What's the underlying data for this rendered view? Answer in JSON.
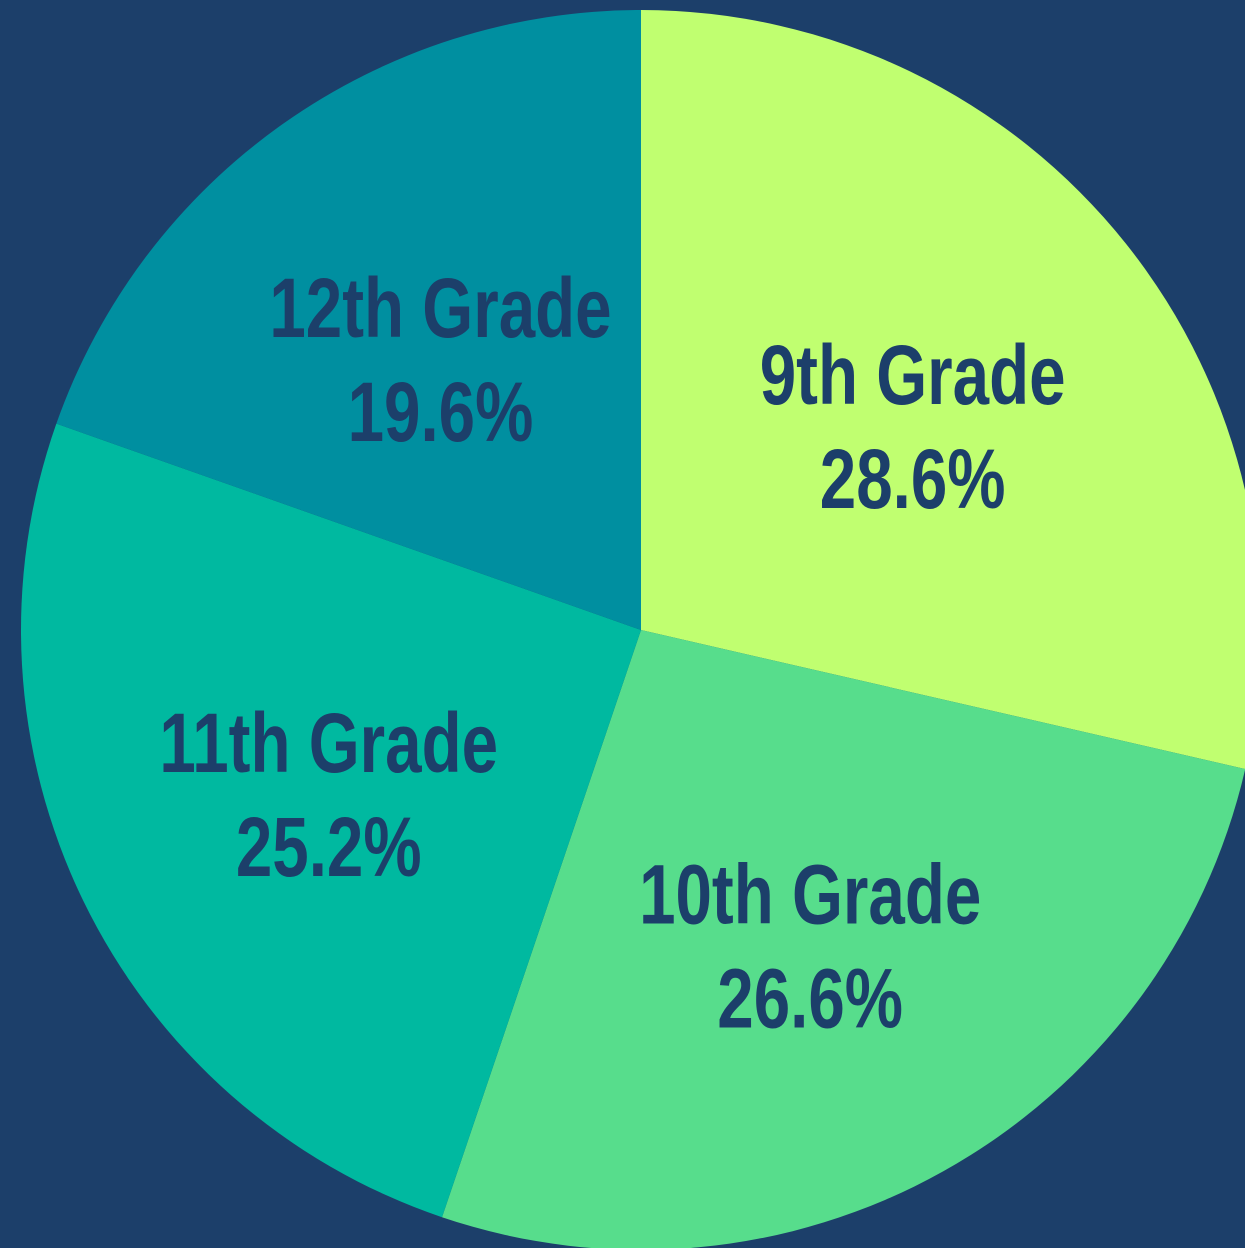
{
  "chart_data": {
    "type": "pie",
    "categories": [
      "9th Grade",
      "10th Grade",
      "11th Grade",
      "12th Grade"
    ],
    "values": [
      28.6,
      26.6,
      25.2,
      19.6
    ],
    "value_labels": [
      "28.6%",
      "26.6%",
      "25.2%",
      "19.6%"
    ],
    "colors": [
      "#c0ff70",
      "#57dd8c",
      "#00b9a0",
      "#008fa0"
    ]
  }
}
